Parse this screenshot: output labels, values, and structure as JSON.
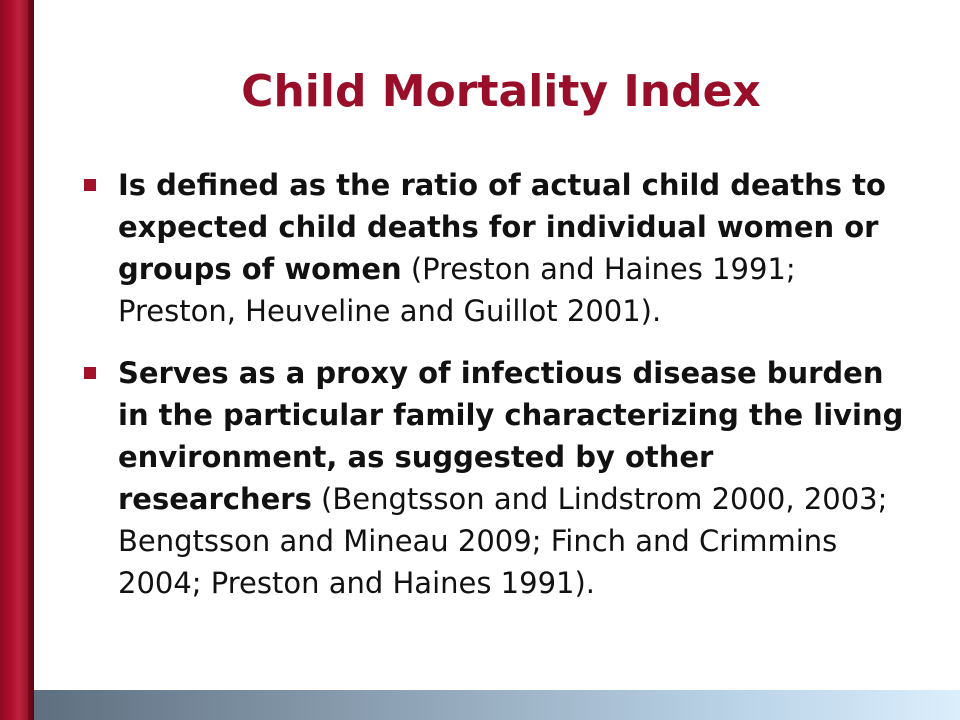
{
  "slide": {
    "title": "Child Mortality Index",
    "bullets": [
      {
        "bold_text": "Is defined as the ratio of actual child deaths to expected child deaths for individual women or groups of women",
        "normal_text": " (Preston and Haines 1991; Preston, Heuveline and Guillot 2001)."
      },
      {
        "bold_text": "Serves as a proxy of infectious disease burden in the particular family characterizing the living environment, as suggested by other researchers",
        "normal_text": " (Bengtsson and Lindstrom 2000, 2003; Bengtsson and Mineau 2009; Finch and Crimmins 2004; Preston and Haines 1991)."
      }
    ]
  },
  "colors": {
    "title": "#990f2a",
    "bullet": "#a31029",
    "left_bar": "#b0102e",
    "bottom_bar_start": "#5e6f7f",
    "bottom_bar_end": "#dbeefc"
  }
}
